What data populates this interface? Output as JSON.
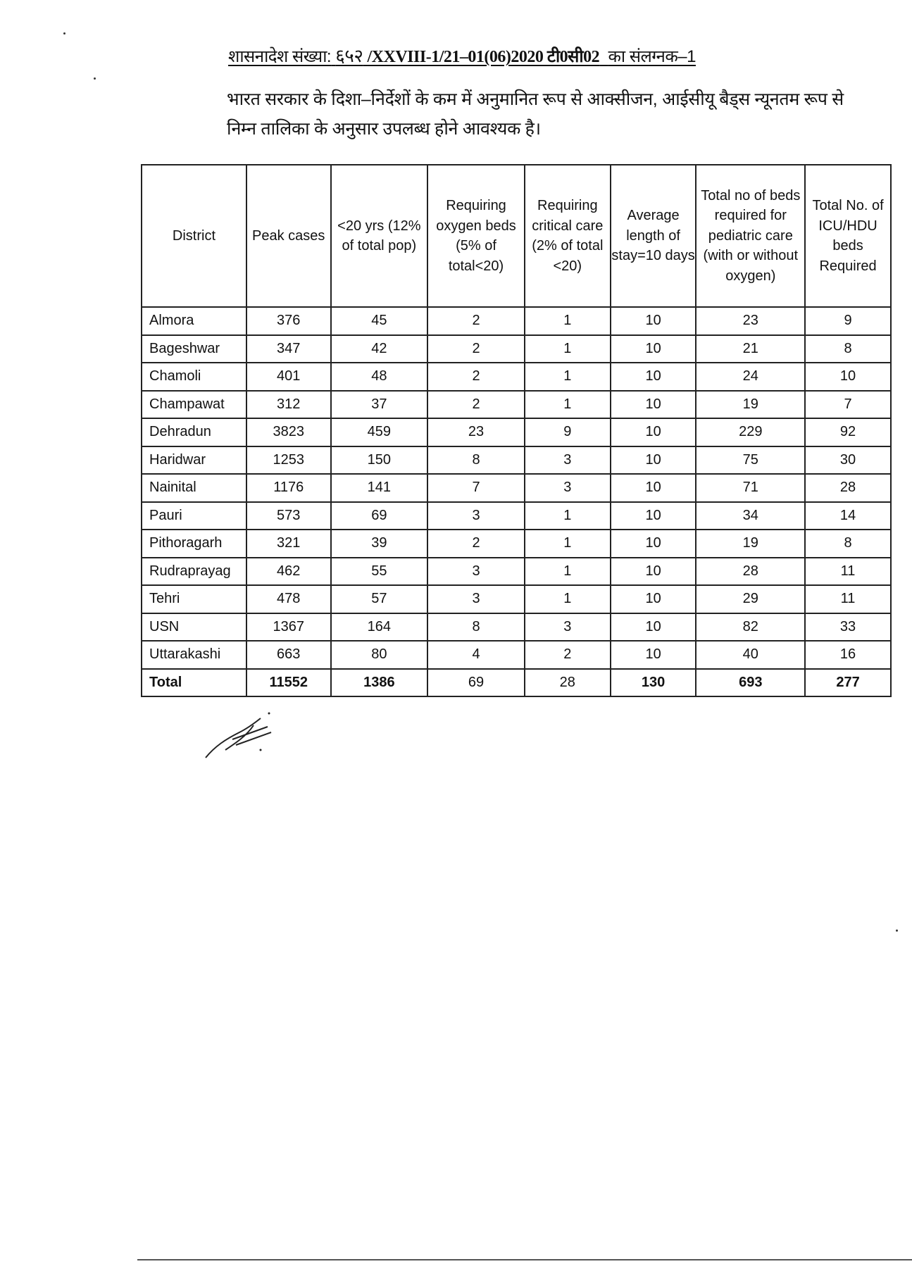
{
  "header": {
    "title_prefix": "शासनादेश संख्या:",
    "title_number": "६५२",
    "title_ref": "/XXVIII-1/21–01(06)2020 टी0सी02",
    "title_suffix": "का संलग्नक–1"
  },
  "intro": "भारत सरकार के दिशा–निर्देशों के कम में अनुमानित रूप से आक्सीजन, आईसीयू बैड्स न्यूनतम रूप से निम्न तालिका के अनुसार उपलब्ध होने आवश्यक है।",
  "table": {
    "columns": [
      "District",
      "Peak cases",
      "<20 yrs (12% of total pop)",
      "Requiring oxygen beds (5% of total<20)",
      "Requiring critical care (2% of total <20)",
      "Average length of stay=10 days",
      "Total no of beds required for pediatric care (with or without oxygen)",
      "Total No. of ICU/HDU beds Required"
    ],
    "rows": [
      [
        "Almora",
        "376",
        "45",
        "2",
        "1",
        "10",
        "23",
        "9"
      ],
      [
        "Bageshwar",
        "347",
        "42",
        "2",
        "1",
        "10",
        "21",
        "8"
      ],
      [
        "Chamoli",
        "401",
        "48",
        "2",
        "1",
        "10",
        "24",
        "10"
      ],
      [
        "Champawat",
        "312",
        "37",
        "2",
        "1",
        "10",
        "19",
        "7"
      ],
      [
        "Dehradun",
        "3823",
        "459",
        "23",
        "9",
        "10",
        "229",
        "92"
      ],
      [
        "Haridwar",
        "1253",
        "150",
        "8",
        "3",
        "10",
        "75",
        "30"
      ],
      [
        "Nainital",
        "1176",
        "141",
        "7",
        "3",
        "10",
        "71",
        "28"
      ],
      [
        "Pauri",
        "573",
        "69",
        "3",
        "1",
        "10",
        "34",
        "14"
      ],
      [
        "Pithoragarh",
        "321",
        "39",
        "2",
        "1",
        "10",
        "19",
        "8"
      ],
      [
        "Rudraprayag",
        "462",
        "55",
        "3",
        "1",
        "10",
        "28",
        "11"
      ],
      [
        "Tehri",
        "478",
        "57",
        "3",
        "1",
        "10",
        "29",
        "11"
      ],
      [
        "USN",
        "1367",
        "164",
        "8",
        "3",
        "10",
        "82",
        "33"
      ],
      [
        "Uttarakashi",
        "663",
        "80",
        "4",
        "2",
        "10",
        "40",
        "16"
      ]
    ],
    "total": [
      "Total",
      "11552",
      "1386",
      "69",
      "28",
      "130",
      "693",
      "277"
    ]
  }
}
